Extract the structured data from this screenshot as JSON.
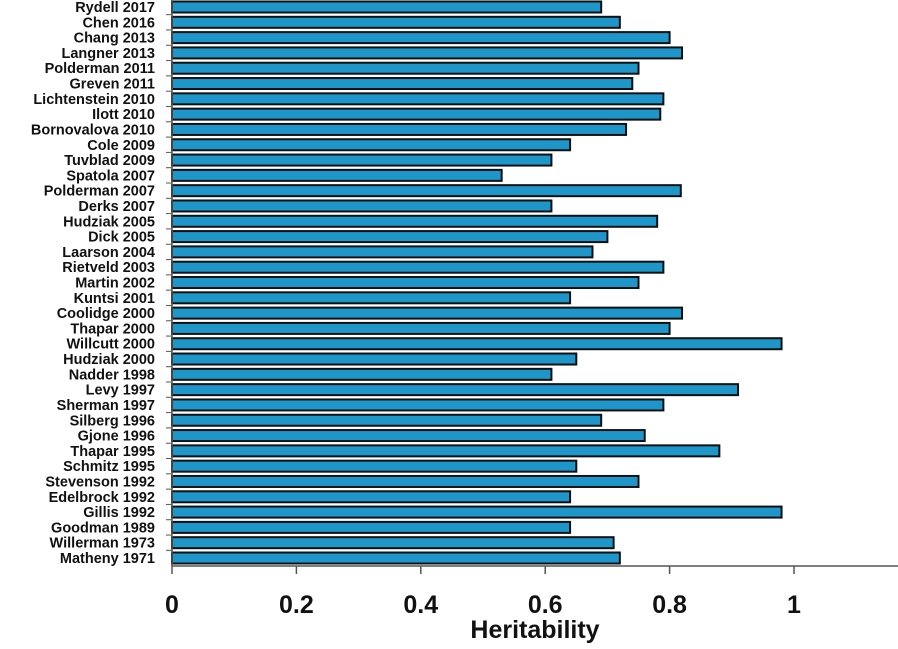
{
  "chart_data": {
    "type": "bar",
    "orientation": "horizontal",
    "categories": [
      "Rydell 2017",
      "Chen 2016",
      "Chang 2013",
      "Langner 2013",
      "Polderman 2011",
      "Greven 2011",
      "Lichtenstein 2010",
      "Ilott 2010",
      "Bornovalova 2010",
      "Cole 2009",
      "Tuvblad 2009",
      "Spatola 2007",
      "Polderman 2007",
      "Derks 2007",
      "Hudziak 2005",
      "Dick 2005",
      "Laarson 2004",
      "Rietveld 2003",
      "Martin 2002",
      "Kuntsi 2001",
      "Coolidge 2000",
      "Thapar 2000",
      "Willcutt 2000",
      "Hudziak 2000",
      "Nadder 1998",
      "Levy 1997",
      "Sherman 1997",
      "Silberg 1996",
      "Gjone 1996",
      "Thapar 1995",
      "Schmitz 1995",
      "Stevenson 1992",
      "Edelbrock 1992",
      "Gillis 1992",
      "Goodman 1989",
      "Willerman 1973",
      "Matheny 1971"
    ],
    "values": [
      0.69,
      0.72,
      0.8,
      0.82,
      0.75,
      0.74,
      0.79,
      0.785,
      0.73,
      0.64,
      0.61,
      0.53,
      0.818,
      0.61,
      0.78,
      0.7,
      0.676,
      0.79,
      0.75,
      0.64,
      0.82,
      0.8,
      0.98,
      0.65,
      0.61,
      0.91,
      0.79,
      0.69,
      0.76,
      0.88,
      0.65,
      0.75,
      0.64,
      0.98,
      0.64,
      0.71,
      0.72
    ],
    "xlabel": "Heritability",
    "ylabel": "",
    "title": "",
    "xlim": [
      0,
      1.17
    ],
    "xticks": [
      "0",
      "0.2",
      "0.4",
      "0.6",
      "0.8",
      "1"
    ],
    "grid": false,
    "bar_color": "#1f96c9",
    "bar_edge_color": "#111111"
  }
}
